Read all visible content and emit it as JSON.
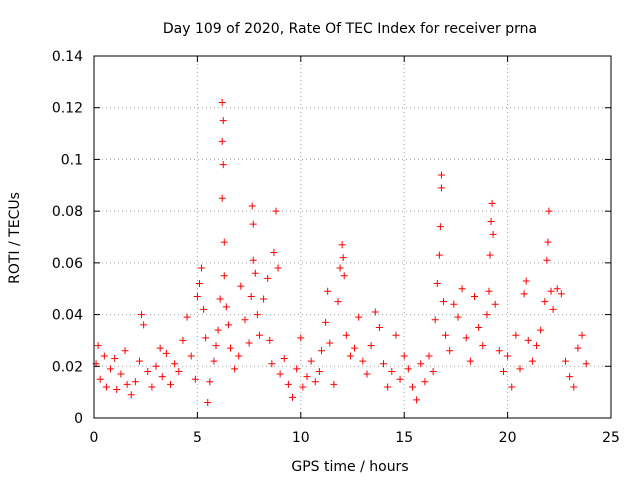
{
  "chart_data": {
    "type": "scatter",
    "title": "Day 109 of 2020, Rate Of TEC Index for receiver prna",
    "xlabel": "GPS time / hours",
    "ylabel": "ROTI / TECUs",
    "xlim": [
      0,
      25
    ],
    "ylim": [
      0,
      0.14
    ],
    "xticks": [
      "0",
      "5",
      "10",
      "15",
      "20",
      "25"
    ],
    "yticks": [
      "0",
      "0.02",
      "0.04",
      "0.06",
      "0.08",
      "0.1",
      "0.12",
      "0.14"
    ],
    "grid": true,
    "marker": "+",
    "color": "#ff0000",
    "series": [
      {
        "values": [
          [
            0.1,
            0.021
          ],
          [
            0.2,
            0.028
          ],
          [
            0.3,
            0.015
          ],
          [
            0.5,
            0.024
          ],
          [
            0.6,
            0.012
          ],
          [
            0.8,
            0.019
          ],
          [
            1.0,
            0.023
          ],
          [
            1.1,
            0.011
          ],
          [
            1.3,
            0.017
          ],
          [
            1.5,
            0.026
          ],
          [
            1.6,
            0.013
          ],
          [
            1.8,
            0.009
          ],
          [
            2.0,
            0.014
          ],
          [
            2.2,
            0.022
          ],
          [
            2.3,
            0.04
          ],
          [
            2.4,
            0.036
          ],
          [
            2.6,
            0.018
          ],
          [
            2.8,
            0.012
          ],
          [
            3.0,
            0.02
          ],
          [
            3.2,
            0.027
          ],
          [
            3.3,
            0.016
          ],
          [
            3.5,
            0.025
          ],
          [
            3.7,
            0.013
          ],
          [
            3.9,
            0.021
          ],
          [
            4.1,
            0.018
          ],
          [
            4.3,
            0.03
          ],
          [
            4.5,
            0.039
          ],
          [
            4.7,
            0.024
          ],
          [
            4.9,
            0.015
          ],
          [
            5.0,
            0.047
          ],
          [
            5.1,
            0.052
          ],
          [
            5.2,
            0.058
          ],
          [
            5.3,
            0.042
          ],
          [
            5.4,
            0.031
          ],
          [
            5.5,
            0.006
          ],
          [
            5.6,
            0.014
          ],
          [
            5.8,
            0.022
          ],
          [
            5.9,
            0.028
          ],
          [
            6.0,
            0.034
          ],
          [
            6.1,
            0.046
          ],
          [
            6.2,
            0.122
          ],
          [
            6.25,
            0.115
          ],
          [
            6.2,
            0.107
          ],
          [
            6.25,
            0.098
          ],
          [
            6.2,
            0.085
          ],
          [
            6.3,
            0.068
          ],
          [
            6.3,
            0.055
          ],
          [
            6.4,
            0.043
          ],
          [
            6.5,
            0.036
          ],
          [
            6.6,
            0.027
          ],
          [
            6.8,
            0.019
          ],
          [
            7.0,
            0.024
          ],
          [
            7.1,
            0.051
          ],
          [
            7.3,
            0.038
          ],
          [
            7.5,
            0.029
          ],
          [
            7.6,
            0.047
          ],
          [
            7.65,
            0.082
          ],
          [
            7.7,
            0.075
          ],
          [
            7.7,
            0.061
          ],
          [
            7.8,
            0.056
          ],
          [
            7.9,
            0.04
          ],
          [
            8.0,
            0.032
          ],
          [
            8.2,
            0.046
          ],
          [
            8.4,
            0.054
          ],
          [
            8.5,
            0.03
          ],
          [
            8.6,
            0.021
          ],
          [
            8.7,
            0.064
          ],
          [
            8.8,
            0.08
          ],
          [
            8.9,
            0.058
          ],
          [
            9.0,
            0.017
          ],
          [
            9.2,
            0.023
          ],
          [
            9.4,
            0.013
          ],
          [
            9.6,
            0.008
          ],
          [
            9.8,
            0.019
          ],
          [
            10.0,
            0.031
          ],
          [
            10.1,
            0.012
          ],
          [
            10.3,
            0.016
          ],
          [
            10.5,
            0.022
          ],
          [
            10.7,
            0.014
          ],
          [
            10.9,
            0.018
          ],
          [
            11.0,
            0.026
          ],
          [
            11.2,
            0.037
          ],
          [
            11.3,
            0.049
          ],
          [
            11.4,
            0.029
          ],
          [
            11.6,
            0.013
          ],
          [
            11.8,
            0.045
          ],
          [
            11.9,
            0.058
          ],
          [
            12.0,
            0.067
          ],
          [
            12.05,
            0.062
          ],
          [
            12.1,
            0.055
          ],
          [
            12.2,
            0.032
          ],
          [
            12.4,
            0.024
          ],
          [
            12.6,
            0.027
          ],
          [
            12.8,
            0.039
          ],
          [
            13.0,
            0.022
          ],
          [
            13.2,
            0.017
          ],
          [
            13.4,
            0.028
          ],
          [
            13.6,
            0.041
          ],
          [
            13.8,
            0.035
          ],
          [
            14.0,
            0.021
          ],
          [
            14.2,
            0.012
          ],
          [
            14.4,
            0.018
          ],
          [
            14.6,
            0.032
          ],
          [
            14.8,
            0.015
          ],
          [
            15.0,
            0.024
          ],
          [
            15.2,
            0.019
          ],
          [
            15.4,
            0.012
          ],
          [
            15.6,
            0.007
          ],
          [
            15.8,
            0.021
          ],
          [
            16.0,
            0.014
          ],
          [
            16.2,
            0.024
          ],
          [
            16.4,
            0.018
          ],
          [
            16.5,
            0.038
          ],
          [
            16.6,
            0.052
          ],
          [
            16.7,
            0.063
          ],
          [
            16.75,
            0.074
          ],
          [
            16.8,
            0.089
          ],
          [
            16.8,
            0.094
          ],
          [
            16.9,
            0.045
          ],
          [
            17.0,
            0.032
          ],
          [
            17.2,
            0.026
          ],
          [
            17.4,
            0.044
          ],
          [
            17.6,
            0.039
          ],
          [
            17.8,
            0.05
          ],
          [
            18.0,
            0.031
          ],
          [
            18.2,
            0.022
          ],
          [
            18.4,
            0.047
          ],
          [
            18.6,
            0.035
          ],
          [
            18.8,
            0.028
          ],
          [
            19.0,
            0.04
          ],
          [
            19.1,
            0.049
          ],
          [
            19.15,
            0.063
          ],
          [
            19.2,
            0.076
          ],
          [
            19.25,
            0.083
          ],
          [
            19.3,
            0.071
          ],
          [
            19.4,
            0.044
          ],
          [
            19.6,
            0.026
          ],
          [
            19.8,
            0.018
          ],
          [
            20.0,
            0.024
          ],
          [
            20.2,
            0.012
          ],
          [
            20.4,
            0.032
          ],
          [
            20.6,
            0.019
          ],
          [
            20.8,
            0.048
          ],
          [
            20.9,
            0.053
          ],
          [
            21.0,
            0.03
          ],
          [
            21.2,
            0.022
          ],
          [
            21.4,
            0.028
          ],
          [
            21.6,
            0.034
          ],
          [
            21.8,
            0.045
          ],
          [
            21.9,
            0.061
          ],
          [
            21.95,
            0.068
          ],
          [
            22.0,
            0.08
          ],
          [
            22.1,
            0.049
          ],
          [
            22.2,
            0.042
          ],
          [
            22.4,
            0.05
          ],
          [
            22.6,
            0.048
          ],
          [
            22.8,
            0.022
          ],
          [
            23.0,
            0.016
          ],
          [
            23.2,
            0.012
          ],
          [
            23.4,
            0.027
          ],
          [
            23.6,
            0.032
          ],
          [
            23.8,
            0.021
          ]
        ]
      }
    ]
  }
}
